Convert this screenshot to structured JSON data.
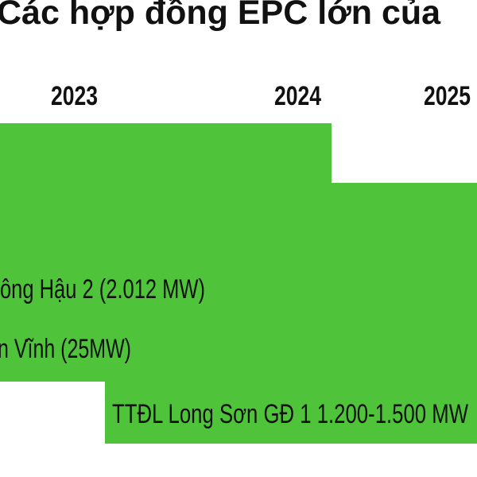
{
  "chart_data": {
    "type": "gantt",
    "title": "Các hợp đồng EPC lớn của",
    "x_ticks": [
      "2023",
      "2024",
      "2025"
    ],
    "bar_color": "#4fc43b",
    "tasks": [
      {
        "label": ""
      },
      {
        "label": ""
      },
      {
        "label": "ông Hậu 2 (2.012 MW)"
      },
      {
        "label": "n Vĩnh (25MW)"
      },
      {
        "label": "TTĐL Long Sơn GĐ 1 1.200-1.500 MW"
      }
    ]
  }
}
